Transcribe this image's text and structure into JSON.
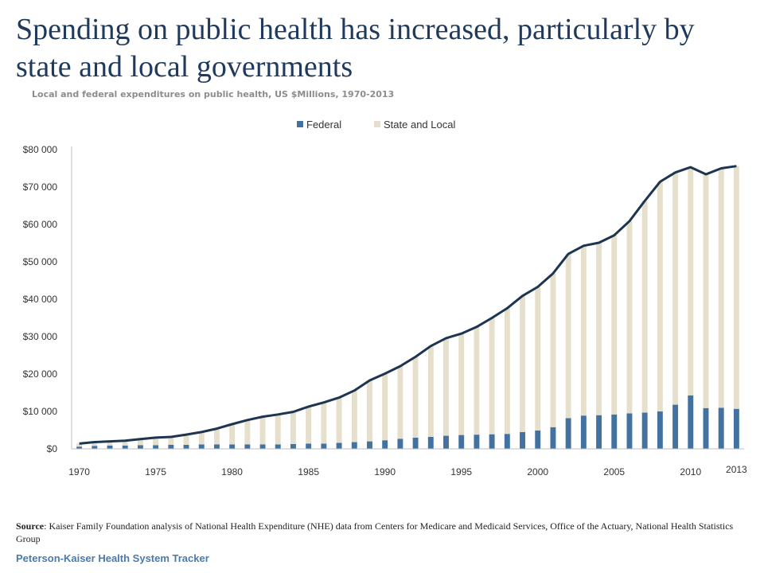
{
  "title": "Spending on public health has increased, particularly by state and local governments",
  "subtitle": "Local and federal expenditures on public health, US $Millions, 1970-2013",
  "source_label": "Source",
  "source_text": ": Kaiser Family Foundation analysis of National Health Expenditure (NHE) data from Centers for Medicare and Medicaid Services, Office of the Actuary, National Health Statistics Group",
  "brand": "Peterson-Kaiser Health System Tracker",
  "chart_data": {
    "type": "bar",
    "stacked": true,
    "categories": [
      1970,
      1971,
      1972,
      1973,
      1974,
      1975,
      1976,
      1977,
      1978,
      1979,
      1980,
      1981,
      1982,
      1983,
      1984,
      1985,
      1986,
      1987,
      1988,
      1989,
      1990,
      1991,
      1992,
      1993,
      1994,
      1995,
      1996,
      1997,
      1998,
      1999,
      2000,
      2001,
      2002,
      2003,
      2004,
      2005,
      2006,
      2007,
      2008,
      2009,
      2010,
      2011,
      2012,
      2013
    ],
    "x_tick_labels": [
      "1970",
      "1975",
      "1980",
      "1985",
      "1990",
      "1995",
      "2000",
      "2005",
      "2010",
      "2013"
    ],
    "series": [
      {
        "name": "Federal",
        "color": "#4472a0",
        "values": [
          600,
          800,
          900,
          900,
          1000,
          1000,
          1100,
          1100,
          1200,
          1200,
          1200,
          1200,
          1200,
          1200,
          1300,
          1400,
          1400,
          1600,
          1800,
          2000,
          2300,
          2700,
          3000,
          3200,
          3500,
          3700,
          3800,
          3900,
          4000,
          4500,
          4900,
          5800,
          8200,
          8900,
          9000,
          9200,
          9500,
          9700,
          10000,
          11800,
          14300,
          10900,
          11000,
          10700
        ]
      },
      {
        "name": "State and Local",
        "color": "#e6dfcc",
        "values": [
          800,
          1000,
          1100,
          1300,
          1600,
          2000,
          2100,
          2700,
          3300,
          4200,
          5400,
          6500,
          7400,
          8000,
          8600,
          9900,
          11000,
          12100,
          13800,
          16300,
          17800,
          19400,
          21600,
          24300,
          26100,
          27100,
          28800,
          31100,
          33600,
          36400,
          38400,
          41100,
          43900,
          45400,
          46100,
          47900,
          51400,
          56600,
          61400,
          62100,
          61000,
          62500,
          64000,
          64900
        ]
      }
    ],
    "total_line": {
      "color": "#1e3552",
      "values": [
        1400,
        1800,
        2000,
        2200,
        2600,
        3000,
        3200,
        3800,
        4500,
        5400,
        6600,
        7700,
        8600,
        9200,
        9900,
        11300,
        12400,
        13700,
        15600,
        18300,
        20100,
        22100,
        24600,
        27500,
        29600,
        30800,
        32600,
        35000,
        37600,
        40900,
        43300,
        46900,
        52100,
        54300,
        55100,
        57100,
        60900,
        66300,
        71400,
        73900,
        75300,
        73400,
        75000,
        75600
      ]
    },
    "y_axis": {
      "min": 0,
      "max": 80000,
      "step": 10000,
      "tick_labels": [
        "$0",
        "$10 000",
        "$20 000",
        "$30 000",
        "$40 000",
        "$50 000",
        "$60 000",
        "$70 000",
        "$80 000"
      ]
    },
    "legend_position": "top-center",
    "grid": false
  }
}
